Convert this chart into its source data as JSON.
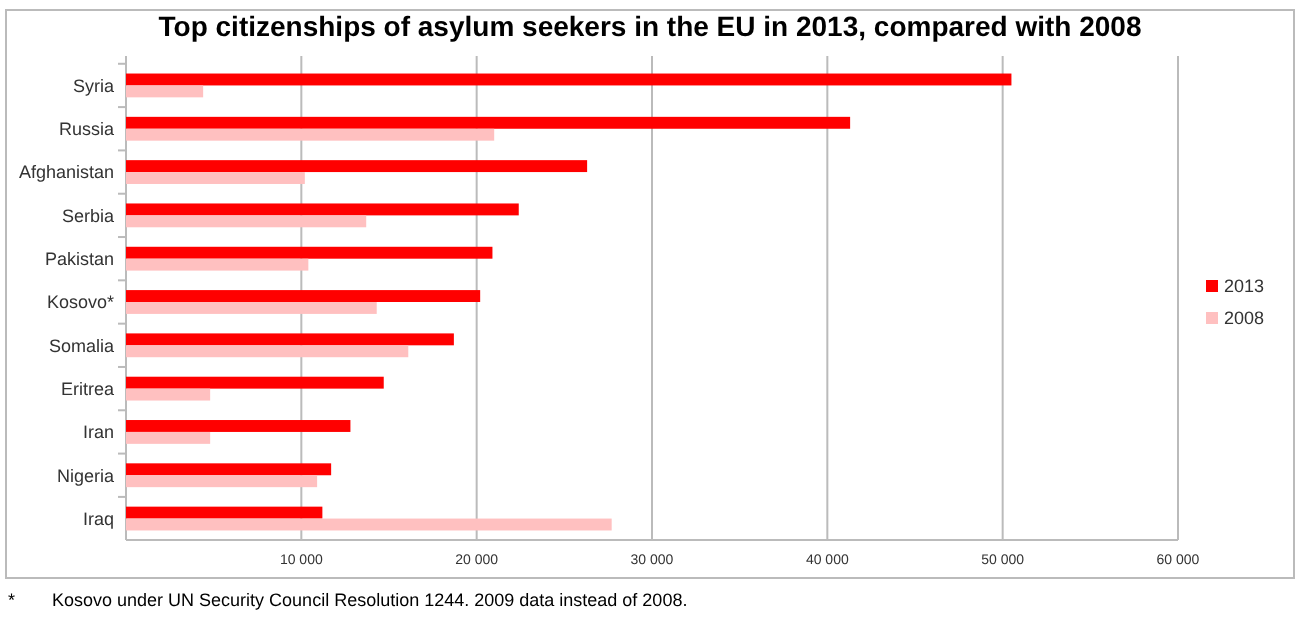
{
  "chart_data": {
    "type": "bar",
    "orientation": "horizontal",
    "title": "Top citizenships of asylum seekers in the EU in 2013, compared with 2008",
    "categories": [
      "Syria",
      "Russia",
      "Afghanistan",
      "Serbia",
      "Pakistan",
      "Kosovo*",
      "Somalia",
      "Eritrea",
      "Iran",
      "Nigeria",
      "Iraq"
    ],
    "series": [
      {
        "name": "2013",
        "color": "#ff0000",
        "values": [
          50500,
          41300,
          26300,
          22400,
          20900,
          20200,
          18700,
          14700,
          12800,
          11700,
          11200
        ]
      },
      {
        "name": "2008",
        "color": "#ffc0c0",
        "values": [
          4400,
          21000,
          10200,
          13700,
          10400,
          14300,
          16100,
          4800,
          4800,
          10900,
          27700
        ]
      }
    ],
    "xlim": [
      0,
      60000
    ],
    "xticks": [
      {
        "value": 10000,
        "label": "10 000"
      },
      {
        "value": 20000,
        "label": "20 000"
      },
      {
        "value": 30000,
        "label": "30 000"
      },
      {
        "value": 40000,
        "label": "40 000"
      },
      {
        "value": 50000,
        "label": "50 000"
      },
      {
        "value": 60000,
        "label": "60 000"
      }
    ],
    "grid": "x",
    "legend": "right",
    "annotations": [
      "*",
      "Kosovo under UN Security Council Resolution 1244. 2009 data instead of 2008."
    ]
  }
}
